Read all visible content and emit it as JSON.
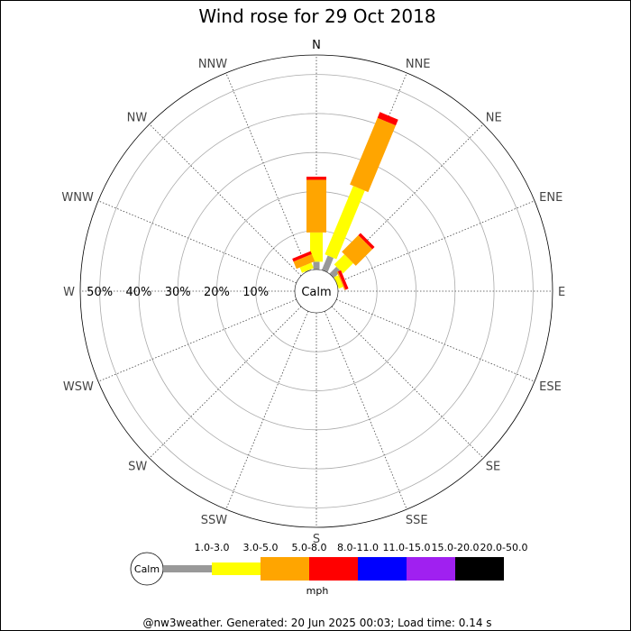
{
  "chart_data": {
    "type": "wind-rose",
    "title": "Wind rose for 29 Oct 2018",
    "directions": [
      "N",
      "NNE",
      "NE",
      "ENE",
      "E",
      "ESE",
      "SE",
      "SSE",
      "S",
      "SSW",
      "SW",
      "WSW",
      "W",
      "WNW",
      "NW",
      "NNW"
    ],
    "ring_labels": [
      "10%",
      "20%",
      "30%",
      "40%",
      "50%"
    ],
    "ring_values": [
      10,
      20,
      30,
      40,
      50
    ],
    "rmax": 55,
    "calm_label": "Calm",
    "speed_bins": [
      {
        "label": "1.0-3.0",
        "color": "#999999"
      },
      {
        "label": "3.0-5.0",
        "color": "#ffff00"
      },
      {
        "label": "5.0-8.0",
        "color": "#ffa500"
      },
      {
        "label": "8.0-11.0",
        "color": "#ff0000"
      },
      {
        "label": "11.0-15.0",
        "color": "#0000ff"
      },
      {
        "label": "15.0-20.0",
        "color": "#a020f0"
      },
      {
        "label": "20.0-50.0",
        "color": "#000000"
      }
    ],
    "unit": "mph",
    "series": [
      {
        "direction": "N",
        "values": [
          2,
          7.5,
          13.5,
          0.8,
          0,
          0,
          0
        ]
      },
      {
        "direction": "NNE",
        "values": [
          4,
          19,
          18.5,
          1.6,
          0,
          0,
          0
        ]
      },
      {
        "direction": "NE",
        "values": [
          2.5,
          3.7,
          6,
          0.8,
          0,
          0,
          0
        ]
      },
      {
        "direction": "ENE",
        "values": [
          0,
          1.2,
          0.3,
          0.8,
          0,
          0,
          0
        ]
      },
      {
        "direction": "NNW",
        "values": [
          0.2,
          1.5,
          2,
          0.8,
          0,
          0,
          0
        ]
      }
    ]
  },
  "legend": {
    "calm_label": "Calm",
    "unit": "mph"
  },
  "footer": "@nw3weather. Generated: 20 Jun 2025 00:03; Load time: 0.14 s"
}
